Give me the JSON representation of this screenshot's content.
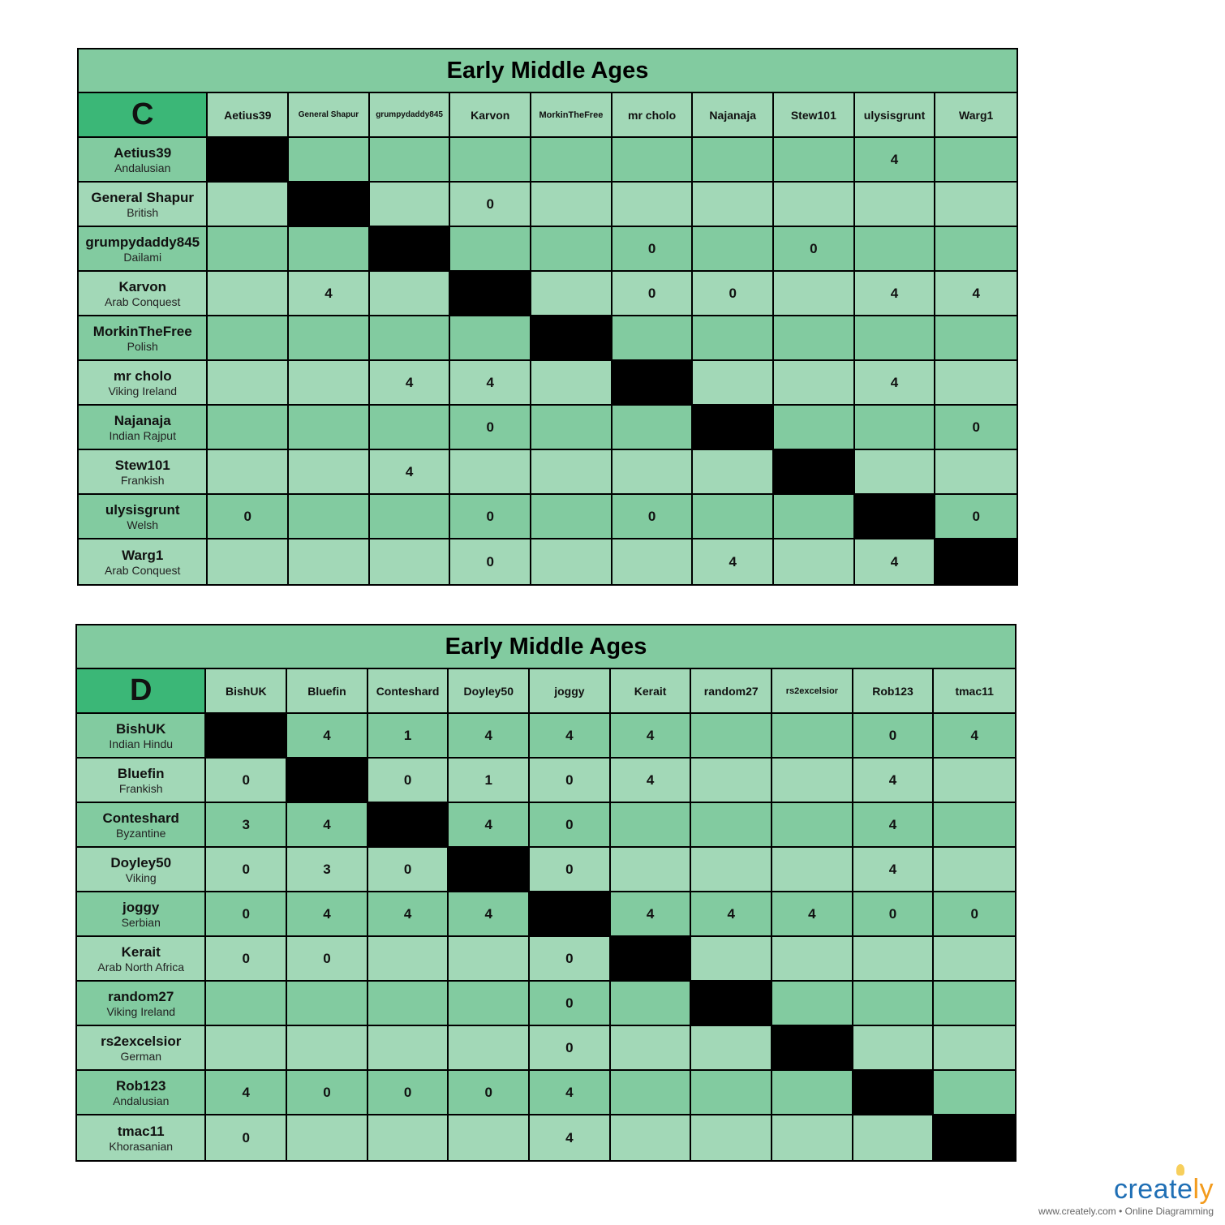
{
  "tables": [
    {
      "title": "Early Middle Ages",
      "group": "C",
      "columns": [
        "Aetius39",
        "General Shapur",
        "grumpydaddy845",
        "Karvon",
        "MorkinTheFree",
        "mr cholo",
        "Najanaja",
        "Stew101",
        "ulysisgrunt",
        "Warg1"
      ],
      "rows": [
        {
          "name": "Aetius39",
          "civ": "Andalusian",
          "cells": [
            null,
            "",
            "",
            "",
            "",
            "",
            "",
            "",
            "4",
            ""
          ]
        },
        {
          "name": "General Shapur",
          "civ": "British",
          "cells": [
            "",
            null,
            "",
            "0",
            "",
            "",
            "",
            "",
            "",
            ""
          ]
        },
        {
          "name": "grumpydaddy845",
          "civ": "Dailami",
          "cells": [
            "",
            "",
            null,
            "",
            "",
            "0",
            "",
            "0",
            "",
            ""
          ]
        },
        {
          "name": "Karvon",
          "civ": "Arab Conquest",
          "cells": [
            "",
            "4",
            "",
            null,
            "",
            "0",
            "0",
            "",
            "4",
            "4"
          ]
        },
        {
          "name": "MorkinTheFree",
          "civ": "Polish",
          "cells": [
            "",
            "",
            "",
            "",
            null,
            "",
            "",
            "",
            "",
            ""
          ]
        },
        {
          "name": "mr cholo",
          "civ": "Viking Ireland",
          "cells": [
            "",
            "",
            "4",
            "4",
            "",
            null,
            "",
            "",
            "4",
            ""
          ]
        },
        {
          "name": "Najanaja",
          "civ": "Indian Rajput",
          "cells": [
            "",
            "",
            "",
            "0",
            "",
            "",
            null,
            "",
            "",
            "0"
          ]
        },
        {
          "name": "Stew101",
          "civ": "Frankish",
          "cells": [
            "",
            "",
            "4",
            "",
            "",
            "",
            "",
            null,
            "",
            ""
          ]
        },
        {
          "name": "ulysisgrunt",
          "civ": "Welsh",
          "cells": [
            "0",
            "",
            "",
            "0",
            "",
            "0",
            "",
            "",
            null,
            "0"
          ]
        },
        {
          "name": "Warg1",
          "civ": "Arab Conquest",
          "cells": [
            "",
            "",
            "",
            "0",
            "",
            "",
            "4",
            "",
            "4",
            null
          ]
        }
      ]
    },
    {
      "title": "Early Middle Ages",
      "group": "D",
      "columns": [
        "BishUK",
        "Bluefin",
        "Conteshard",
        "Doyley50",
        "joggy",
        "Kerait",
        "random27",
        "rs2excelsior",
        "Rob123",
        "tmac11"
      ],
      "rows": [
        {
          "name": "BishUK",
          "civ": "Indian Hindu",
          "cells": [
            null,
            "4",
            "1",
            "4",
            "4",
            "4",
            "",
            "",
            "0",
            "4"
          ]
        },
        {
          "name": "Bluefin",
          "civ": "Frankish",
          "cells": [
            "0",
            null,
            "0",
            "1",
            "0",
            "4",
            "",
            "",
            "4",
            ""
          ]
        },
        {
          "name": "Conteshard",
          "civ": "Byzantine",
          "cells": [
            "3",
            "4",
            null,
            "4",
            "0",
            "",
            "",
            "",
            "4",
            ""
          ]
        },
        {
          "name": "Doyley50",
          "civ": "Viking",
          "cells": [
            "0",
            "3",
            "0",
            null,
            "0",
            "",
            "",
            "",
            "4",
            ""
          ]
        },
        {
          "name": "joggy",
          "civ": "Serbian",
          "cells": [
            "0",
            "4",
            "4",
            "4",
            null,
            "4",
            "4",
            "4",
            "0",
            "0"
          ]
        },
        {
          "name": "Kerait",
          "civ": "Arab North Africa",
          "cells": [
            "0",
            "0",
            "",
            "",
            "0",
            null,
            "",
            "",
            "",
            ""
          ]
        },
        {
          "name": "random27",
          "civ": "Viking Ireland",
          "cells": [
            "",
            "",
            "",
            "",
            "0",
            "",
            null,
            "",
            "",
            ""
          ]
        },
        {
          "name": "rs2excelsior",
          "civ": "German",
          "cells": [
            "",
            "",
            "",
            "",
            "0",
            "",
            "",
            null,
            "",
            ""
          ]
        },
        {
          "name": "Rob123",
          "civ": "Andalusian",
          "cells": [
            "4",
            "0",
            "0",
            "0",
            "4",
            "",
            "",
            "",
            null,
            ""
          ]
        },
        {
          "name": "tmac11",
          "civ": "Khorasanian",
          "cells": [
            "0",
            "",
            "",
            "",
            "4",
            "",
            "",
            "",
            "",
            null
          ]
        }
      ]
    }
  ],
  "colors": {
    "corner": "#3bb777",
    "dark_row": "#82cba0",
    "light_row": "#a2d8b7",
    "diagonal": "#000000"
  },
  "logo": {
    "word": "creately",
    "tagline": "www.creately.com • Online Diagramming"
  }
}
